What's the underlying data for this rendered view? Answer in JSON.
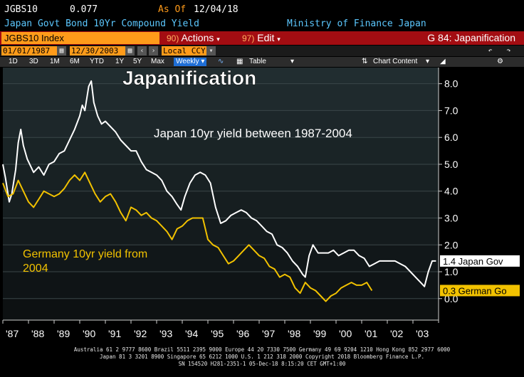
{
  "header": {
    "ticker": "JGBS10",
    "value": "0.077",
    "as_of_label": "As Of",
    "as_of_date": "12/04/18",
    "description": "Japan Govt Bond 10Yr Compound Yield",
    "source": "Ministry of Finance Japan"
  },
  "menubar": {
    "index": "JGBS10 Index",
    "actions_num": "90)",
    "actions": "Actions",
    "edit_num": "97)",
    "edit": "Edit",
    "gtitle": "G 84: Japanification"
  },
  "toolbar": {
    "start_date": "01/01/1987",
    "end_date": "12/30/2003",
    "currency": "Local CCY",
    "ranges": [
      "1D",
      "3D",
      "1M",
      "6M",
      "YTD",
      "1Y",
      "5Y",
      "Max"
    ],
    "frequency": "Weekly",
    "table_label": "Table",
    "chart_content": "Chart Content"
  },
  "annotations": {
    "title": "Japanification",
    "japan_text": "Japan 10yr yield between 1987-2004",
    "germany_text_line1": "Germany 10yr yield from",
    "germany_text_line2": "2004"
  },
  "colors": {
    "japan": "#ffffff",
    "germany": "#f2c200",
    "bar_red": "#a30d12",
    "amber": "#ff9b1a"
  },
  "chart_data": {
    "type": "line",
    "x_range": [
      1987.0,
      2004.0
    ],
    "ylim": [
      -0.8,
      8.6
    ],
    "ytick_labels": [
      "0.0",
      "1.0",
      "2.0",
      "3.0",
      "4.0",
      "5.0",
      "6.0",
      "7.0",
      "8.0"
    ],
    "yticks": [
      0,
      1,
      2,
      3,
      4,
      5,
      6,
      7,
      8
    ],
    "xtick_labels": [
      "'87",
      "'88",
      "'89",
      "'90",
      "'91",
      "'92",
      "'93",
      "'94",
      "'95",
      "'96",
      "'97",
      "'98",
      "'99",
      "'00",
      "'01",
      "'02",
      "'03"
    ],
    "xticks": [
      1987,
      1988,
      1989,
      1990,
      1991,
      1992,
      1993,
      1994,
      1995,
      1996,
      1997,
      1998,
      1999,
      2000,
      2001,
      2002,
      2003
    ],
    "grid": true,
    "series": [
      {
        "name": "Japan Gov",
        "last_label": "1.4 Japan Gov",
        "x": [
          1987.0,
          1987.1,
          1987.25,
          1987.35,
          1987.5,
          1987.6,
          1987.7,
          1987.8,
          1987.95,
          1988.2,
          1988.4,
          1988.6,
          1988.8,
          1989.0,
          1989.2,
          1989.4,
          1989.6,
          1989.8,
          1990.0,
          1990.1,
          1990.2,
          1990.35,
          1990.45,
          1990.55,
          1990.7,
          1990.85,
          1991.0,
          1991.2,
          1991.4,
          1991.6,
          1991.8,
          1992.0,
          1992.2,
          1992.4,
          1992.6,
          1992.8,
          1993.0,
          1993.2,
          1993.4,
          1993.6,
          1993.8,
          1993.95,
          1994.1,
          1994.3,
          1994.5,
          1994.7,
          1994.9,
          1995.1,
          1995.3,
          1995.5,
          1995.7,
          1995.9,
          1996.1,
          1996.3,
          1996.5,
          1996.7,
          1996.9,
          1997.1,
          1997.3,
          1997.5,
          1997.7,
          1997.9,
          1998.1,
          1998.3,
          1998.5,
          1998.7,
          1998.8,
          1998.95,
          1999.1,
          1999.3,
          1999.5,
          1999.7,
          1999.9,
          2000.1,
          2000.3,
          2000.5,
          2000.7,
          2000.9,
          2001.1,
          2001.3,
          2001.5,
          2001.7,
          2001.9,
          2002.1,
          2002.3,
          2002.5,
          2002.7,
          2002.9,
          2003.1,
          2003.3,
          2003.45,
          2003.6,
          2003.75,
          2003.9
        ],
        "values": [
          5.0,
          4.5,
          3.6,
          3.9,
          4.8,
          5.8,
          6.3,
          5.7,
          5.2,
          4.7,
          4.9,
          4.6,
          5.0,
          5.1,
          5.4,
          5.5,
          5.9,
          6.3,
          6.8,
          7.2,
          7.0,
          7.9,
          8.1,
          7.3,
          6.8,
          6.5,
          6.6,
          6.4,
          6.2,
          5.9,
          5.7,
          5.5,
          5.5,
          5.1,
          4.8,
          4.7,
          4.6,
          4.4,
          4.0,
          3.8,
          3.5,
          3.3,
          3.8,
          4.3,
          4.6,
          4.7,
          4.6,
          4.3,
          3.4,
          2.8,
          2.9,
          3.1,
          3.2,
          3.3,
          3.2,
          3.0,
          2.9,
          2.7,
          2.5,
          2.4,
          2.0,
          1.9,
          1.7,
          1.4,
          1.2,
          0.9,
          0.8,
          1.6,
          2.0,
          1.7,
          1.7,
          1.7,
          1.8,
          1.6,
          1.7,
          1.8,
          1.8,
          1.6,
          1.5,
          1.2,
          1.3,
          1.4,
          1.4,
          1.4,
          1.4,
          1.3,
          1.2,
          1.0,
          0.8,
          0.6,
          0.45,
          1.0,
          1.4,
          1.4
        ]
      },
      {
        "name": "German Go",
        "last_label": "0.3 German Go",
        "x": [
          1987.0,
          1987.2,
          1987.4,
          1987.6,
          1987.8,
          1988.0,
          1988.2,
          1988.4,
          1988.6,
          1988.8,
          1989.0,
          1989.2,
          1989.4,
          1989.6,
          1989.8,
          1990.0,
          1990.2,
          1990.4,
          1990.6,
          1990.8,
          1991.0,
          1991.2,
          1991.4,
          1991.6,
          1991.8,
          1992.0,
          1992.2,
          1992.4,
          1992.6,
          1992.8,
          1993.0,
          1993.2,
          1993.4,
          1993.6,
          1993.8,
          1994.0,
          1994.2,
          1994.4,
          1994.6,
          1994.8,
          1995.0,
          1995.2,
          1995.4,
          1995.6,
          1995.8,
          1996.0,
          1996.2,
          1996.4,
          1996.6,
          1996.8,
          1997.0,
          1997.2,
          1997.4,
          1997.6,
          1997.8,
          1998.0,
          1998.2,
          1998.4,
          1998.6,
          1998.8,
          1999.0,
          1999.2,
          1999.4,
          1999.6,
          1999.8,
          2000.0,
          2000.2,
          2000.4,
          2000.6,
          2000.8,
          2001.0,
          2001.2,
          2001.4
        ],
        "values": [
          4.3,
          3.8,
          3.9,
          4.4,
          4.0,
          3.6,
          3.4,
          3.7,
          4.0,
          3.9,
          3.8,
          3.9,
          4.1,
          4.4,
          4.6,
          4.4,
          4.7,
          4.3,
          3.9,
          3.6,
          3.8,
          3.9,
          3.6,
          3.2,
          2.9,
          3.4,
          3.3,
          3.1,
          3.2,
          3.0,
          2.9,
          2.7,
          2.5,
          2.2,
          2.6,
          2.7,
          2.9,
          3.0,
          3.0,
          3.0,
          2.2,
          2.0,
          1.9,
          1.6,
          1.3,
          1.4,
          1.6,
          1.8,
          2.0,
          1.8,
          1.6,
          1.5,
          1.2,
          1.1,
          0.8,
          0.9,
          0.8,
          0.4,
          0.2,
          0.6,
          0.4,
          0.3,
          0.1,
          -0.1,
          0.1,
          0.2,
          0.4,
          0.5,
          0.6,
          0.5,
          0.5,
          0.6,
          0.3
        ]
      }
    ]
  },
  "footer": {
    "line1": "Australia 61 2 9777 8600 Brazil 5511 2395 9000 Europe 44 20 7330 7500 Germany 49 69 9204 1210 Hong Kong 852 2977 6000",
    "line2": "Japan 81 3 3201 8900       Singapore 65 6212 1000       U.S. 1 212 318 2000           Copyright 2018 Bloomberg Finance L.P.",
    "line3": "SN 154520 H281-2351-1 05-Dec-18  8:15:20 CET  GMT+1:00"
  }
}
